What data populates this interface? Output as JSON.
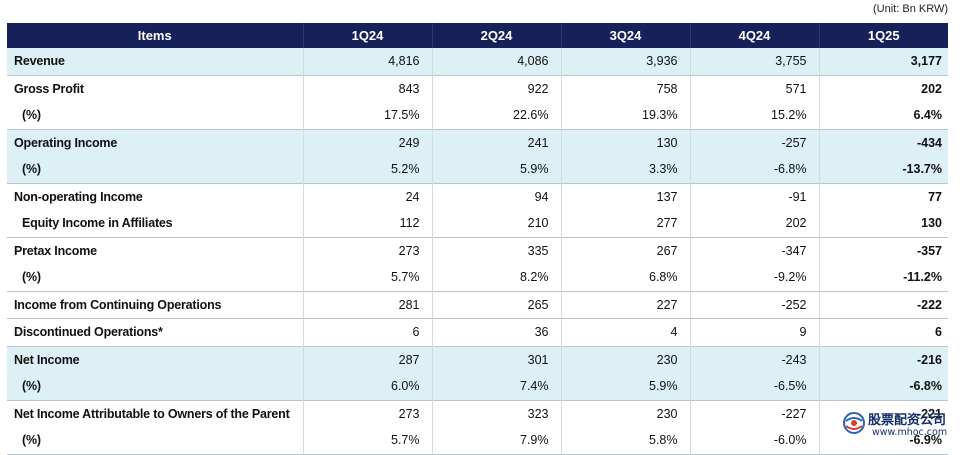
{
  "unit": "(Unit: Bn KRW)",
  "header": [
    "Items",
    "1Q24",
    "2Q24",
    "3Q24",
    "4Q24",
    "1Q25"
  ],
  "rows": [
    {
      "label": "Revenue",
      "values": [
        "4,816",
        "4,086",
        "3,936",
        "3,755",
        "3,177"
      ]
    },
    {
      "label": "Gross Profit",
      "values": [
        "843",
        "922",
        "758",
        "571",
        "202"
      ]
    },
    {
      "label": "(%)",
      "values": [
        "17.5%",
        "22.6%",
        "19.3%",
        "15.2%",
        "6.4%"
      ]
    },
    {
      "label": "Operating Income",
      "values": [
        "249",
        "241",
        "130",
        "-257",
        "-434"
      ]
    },
    {
      "label": "(%)",
      "values": [
        "5.2%",
        "5.9%",
        "3.3%",
        "-6.8%",
        "-13.7%"
      ]
    },
    {
      "label": "Non-operating Income",
      "values": [
        "24",
        "94",
        "137",
        "-91",
        "77"
      ]
    },
    {
      "label": "Equity Income in Affiliates",
      "values": [
        "112",
        "210",
        "277",
        "202",
        "130"
      ]
    },
    {
      "label": "Pretax Income",
      "values": [
        "273",
        "335",
        "267",
        "-347",
        "-357"
      ]
    },
    {
      "label": "(%)",
      "values": [
        "5.7%",
        "8.2%",
        "6.8%",
        "-9.2%",
        "-11.2%"
      ]
    },
    {
      "label": "Income from Continuing Operations",
      "values": [
        "281",
        "265",
        "227",
        "-252",
        "-222"
      ]
    },
    {
      "label": "Discontinued Operations*",
      "values": [
        "6",
        "36",
        "4",
        "9",
        "6"
      ]
    },
    {
      "label": "Net Income",
      "values": [
        "287",
        "301",
        "230",
        "-243",
        "-216"
      ]
    },
    {
      "label": "(%)",
      "values": [
        "6.0%",
        "7.4%",
        "5.9%",
        "-6.5%",
        "-6.8%"
      ]
    },
    {
      "label": "Net Income Attributable to Owners of the Parent",
      "values": [
        "273",
        "323",
        "230",
        "-227",
        "-221"
      ]
    },
    {
      "label": "(%)",
      "values": [
        "5.7%",
        "7.9%",
        "5.8%",
        "-6.0%",
        "-6.9%"
      ]
    }
  ],
  "watermark": {
    "title": "股票配资公司",
    "url": "www.mhoc.com"
  },
  "colors": {
    "header_bg": "#16215a",
    "highlight_bg": "#dcf0f6"
  }
}
